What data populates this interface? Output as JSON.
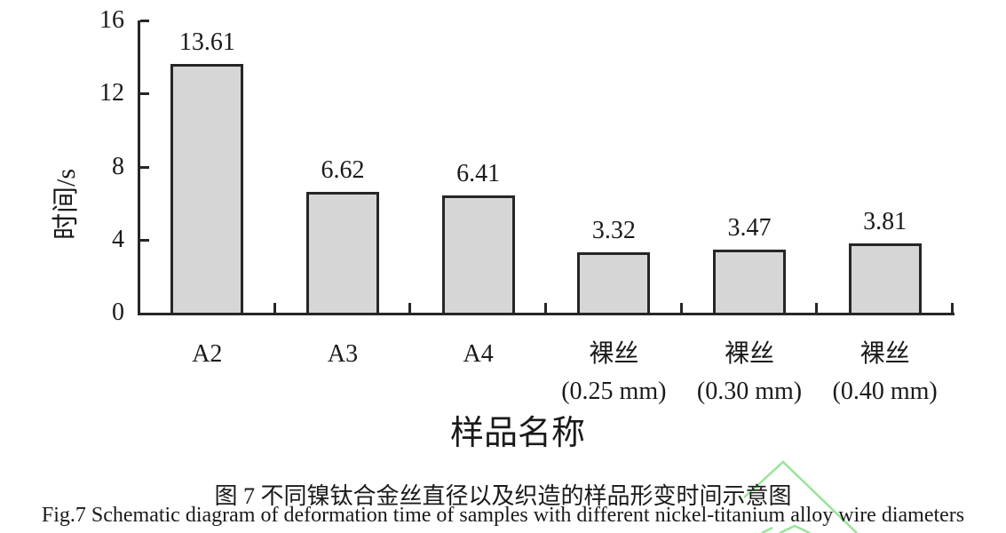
{
  "chart_data": {
    "type": "bar",
    "title": "",
    "categories": [
      {
        "slug": "a2",
        "lines": [
          "A2"
        ]
      },
      {
        "slug": "a3",
        "lines": [
          "A3"
        ]
      },
      {
        "slug": "a4",
        "lines": [
          "A4"
        ]
      },
      {
        "slug": "bare-wire-0.25mm",
        "lines": [
          "裸丝",
          "(0.25 mm)"
        ]
      },
      {
        "slug": "bare-wire-0.30mm",
        "lines": [
          "裸丝",
          "(0.30 mm)"
        ]
      },
      {
        "slug": "bare-wire-0.40mm",
        "lines": [
          "裸丝",
          "(0.40 mm)"
        ]
      }
    ],
    "values": [
      13.61,
      6.62,
      6.41,
      3.32,
      3.47,
      3.81
    ],
    "value_labels": [
      "13.61",
      "6.62",
      "6.41",
      "3.32",
      "3.47",
      "3.81"
    ],
    "xlabel": "样品名称",
    "ylabel": "时间/s",
    "ylim": [
      0,
      16
    ],
    "yticks": [
      0,
      4,
      8,
      12,
      16
    ],
    "grid": false,
    "legend_position": "none",
    "bar_fill": "#d6d6d6",
    "bar_border": "#262626"
  },
  "caption": {
    "line1_zh": "图 7  不同镍钛合金丝直径以及织造的样品形变时间示意图",
    "line2_en": "Fig.7 Schematic diagram of deformation time of samples with different nickel-titanium alloy wire diameters"
  },
  "watermark": {
    "name": "green-chevron-watermark",
    "color": "#97e597"
  },
  "colors": {
    "axis": "#262626",
    "text": "#1a1a1a",
    "background": "#ffffff"
  }
}
